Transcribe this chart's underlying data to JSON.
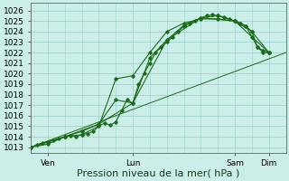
{
  "bg_color": "#cceee8",
  "grid_color": "#99cccc",
  "line_color": "#1a6b1a",
  "ylabel_ticks": [
    1013,
    1014,
    1015,
    1016,
    1017,
    1018,
    1019,
    1020,
    1021,
    1022,
    1023,
    1024,
    1025,
    1026
  ],
  "ylim": [
    1012.5,
    1026.7
  ],
  "xlabel": "Pression niveau de la mer( hPa )",
  "xlabel_fontsize": 8,
  "tick_fontsize": 6.5,
  "day_labels": [
    "Ven",
    "Lun",
    "Sam",
    "Dim"
  ],
  "day_positions": [
    0.5,
    3.0,
    6.0,
    7.0
  ],
  "xlim": [
    0,
    7.5
  ],
  "trend_x": [
    0,
    7.5
  ],
  "trend_y": [
    1013.0,
    1022.0
  ],
  "series1_x": [
    0.0,
    0.17,
    0.33,
    0.5,
    0.67,
    0.83,
    1.0,
    1.17,
    1.33,
    1.5,
    1.67,
    1.83,
    2.0,
    2.17,
    2.33,
    2.5,
    2.67,
    2.83,
    3.0,
    3.17,
    3.33,
    3.5,
    3.67,
    3.83,
    4.0,
    4.17,
    4.33,
    4.5,
    4.67,
    4.83,
    5.0,
    5.17,
    5.33,
    5.5,
    5.67,
    5.83,
    6.0,
    6.17,
    6.33,
    6.5,
    6.67,
    6.83,
    7.0
  ],
  "series1_y": [
    1013.0,
    1013.2,
    1013.4,
    1013.5,
    1013.7,
    1013.8,
    1014.0,
    1014.1,
    1014.0,
    1014.2,
    1014.3,
    1014.5,
    1015.0,
    1015.3,
    1015.1,
    1015.4,
    1016.5,
    1017.5,
    1017.2,
    1019.0,
    1020.0,
    1021.0,
    1022.0,
    1022.5,
    1023.0,
    1023.5,
    1024.0,
    1024.5,
    1024.8,
    1025.0,
    1025.3,
    1025.5,
    1025.6,
    1025.5,
    1025.4,
    1025.2,
    1025.0,
    1024.8,
    1024.5,
    1024.0,
    1022.5,
    1022.0,
    1022.0
  ],
  "series2_x": [
    0.0,
    0.5,
    1.0,
    1.5,
    2.0,
    2.5,
    3.0,
    3.5,
    4.0,
    4.5,
    5.0,
    5.5,
    6.0,
    6.5,
    7.0
  ],
  "series2_y": [
    1013.0,
    1013.5,
    1014.0,
    1014.5,
    1015.2,
    1017.5,
    1017.2,
    1021.5,
    1023.2,
    1024.6,
    1025.3,
    1025.5,
    1025.0,
    1024.0,
    1022.0
  ],
  "series3_x": [
    0.0,
    1.0,
    2.0,
    3.0,
    4.0,
    5.0,
    6.0,
    7.0
  ],
  "series3_y": [
    1013.0,
    1014.0,
    1015.2,
    1017.2,
    1023.2,
    1025.3,
    1025.0,
    1022.0
  ],
  "series4_x": [
    0.0,
    0.5,
    1.0,
    1.5,
    2.0,
    2.5,
    3.0,
    3.5,
    4.0,
    4.5,
    5.0,
    5.5,
    6.0,
    6.17,
    6.33,
    6.5,
    6.67,
    6.83,
    7.0
  ],
  "series4_y": [
    1013.0,
    1013.3,
    1014.0,
    1014.2,
    1015.0,
    1019.5,
    1019.8,
    1022.0,
    1024.0,
    1024.8,
    1025.2,
    1025.2,
    1025.0,
    1024.8,
    1024.5,
    1023.5,
    1022.5,
    1022.2,
    1022.0
  ]
}
